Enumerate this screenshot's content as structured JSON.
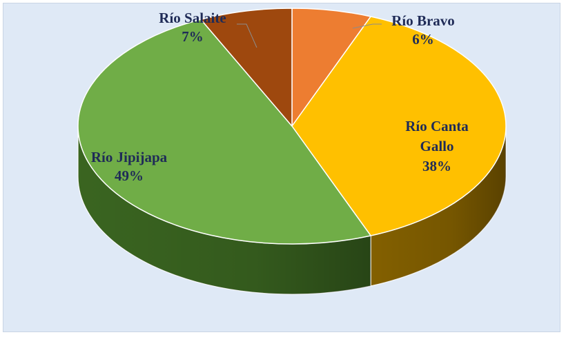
{
  "chart_data": {
    "type": "pie",
    "style": "3d",
    "labels": [
      "Río Bravo",
      "Río Canta Gallo",
      "Río Jipijapa",
      "Río Salaite"
    ],
    "values": [
      6,
      38,
      49,
      7
    ],
    "value_labels": [
      "6%",
      "38%",
      "49%",
      "7%"
    ],
    "colors": [
      "#ed7d31",
      "#ffc000",
      "#70ad47",
      "#9e480e"
    ],
    "side_colors": [
      "#a9571f",
      "#8a6500",
      "#3d6a22",
      "#6b2f08"
    ],
    "title": "",
    "background": "#dfe9f6",
    "label_color": "#1f2b57"
  }
}
